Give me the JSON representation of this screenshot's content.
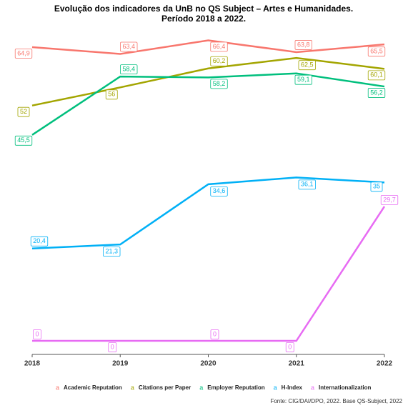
{
  "chart_data": {
    "type": "line",
    "title": "Evolução dos indicadores da UnB no QS Subject – Artes e Humanidades.",
    "subtitle": "Período 2018 a 2022.",
    "x": [
      2018,
      2019,
      2020,
      2021,
      2022
    ],
    "xlim": [
      2018,
      2022
    ],
    "xticks": [
      2018,
      2019,
      2020,
      2021,
      2022
    ],
    "ylim": [
      -3,
      69
    ],
    "legend_key": "a",
    "legend_position": "bottom",
    "series": [
      {
        "name": "Academic Reputation",
        "color": "#F8766D",
        "values": [
          64.9,
          63.4,
          66.4,
          63.8,
          65.5
        ],
        "value_labels": [
          "64,9",
          "63,4",
          "66,4",
          "63,8",
          "65,5"
        ]
      },
      {
        "name": "Citations per Paper",
        "color": "#A3A500",
        "values": [
          52,
          56,
          60.2,
          62.5,
          60.1
        ],
        "value_labels": [
          "52",
          "56",
          "60,2",
          "62,5",
          "60,1"
        ]
      },
      {
        "name": "Employer Reputation",
        "color": "#00BF7D",
        "values": [
          45.5,
          58.4,
          58.2,
          59.1,
          56.2
        ],
        "value_labels": [
          "45,5",
          "58,4",
          "58,2",
          "59,1",
          "56,2"
        ]
      },
      {
        "name": "H-Index",
        "color": "#00B0F6",
        "values": [
          20.4,
          21.3,
          34.6,
          36.1,
          35
        ],
        "value_labels": [
          "20,4",
          "21,3",
          "34,6",
          "36,1",
          "35"
        ]
      },
      {
        "name": "Internationalization",
        "color": "#E76BF3",
        "values": [
          0,
          0,
          0,
          0,
          29.7
        ],
        "value_labels": [
          "0",
          "0",
          "0",
          "0",
          "29,7"
        ]
      }
    ],
    "caption": "Fonte: CIG/DAI/DPO, 2022. Base QS-Subject, 2022"
  }
}
